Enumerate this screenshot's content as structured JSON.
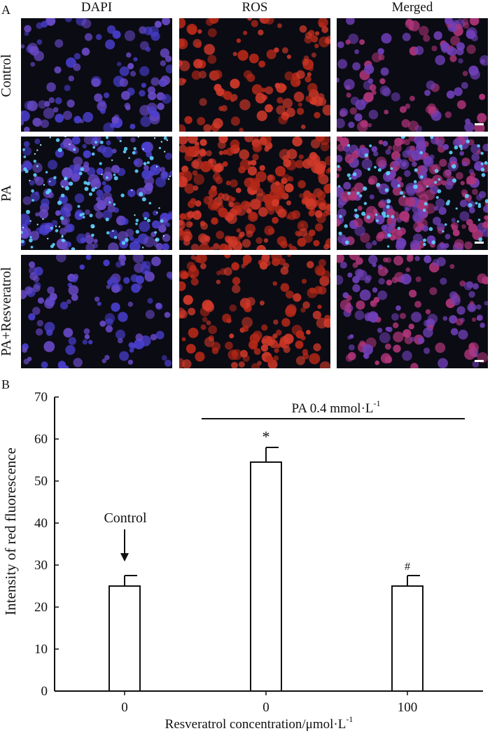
{
  "panel_a": {
    "label": "A",
    "columns": [
      "DAPI",
      "ROS",
      "Merged"
    ],
    "rows": [
      "Control",
      "PA",
      "PA+Resveratrol"
    ]
  },
  "panel_b": {
    "label": "B"
  },
  "chart_data": {
    "type": "bar",
    "categories": [
      "0",
      "0",
      "100"
    ],
    "values": [
      25,
      54.5,
      25
    ],
    "errors": [
      2.5,
      3.5,
      2.5
    ],
    "ylabel": "Intensity of red fluorescence",
    "xlabel": "Resveratrol concentration/μmol·L",
    "xlabel_superscript": "-1",
    "ylim": [
      0,
      70
    ],
    "yticks": [
      0,
      10,
      20,
      30,
      40,
      50,
      60,
      70
    ],
    "annotations": {
      "control_label": "Control",
      "significance": [
        "",
        "*",
        "#"
      ],
      "bracket_label": "PA 0.4 mmol·L",
      "bracket_superscript": "-1"
    }
  }
}
